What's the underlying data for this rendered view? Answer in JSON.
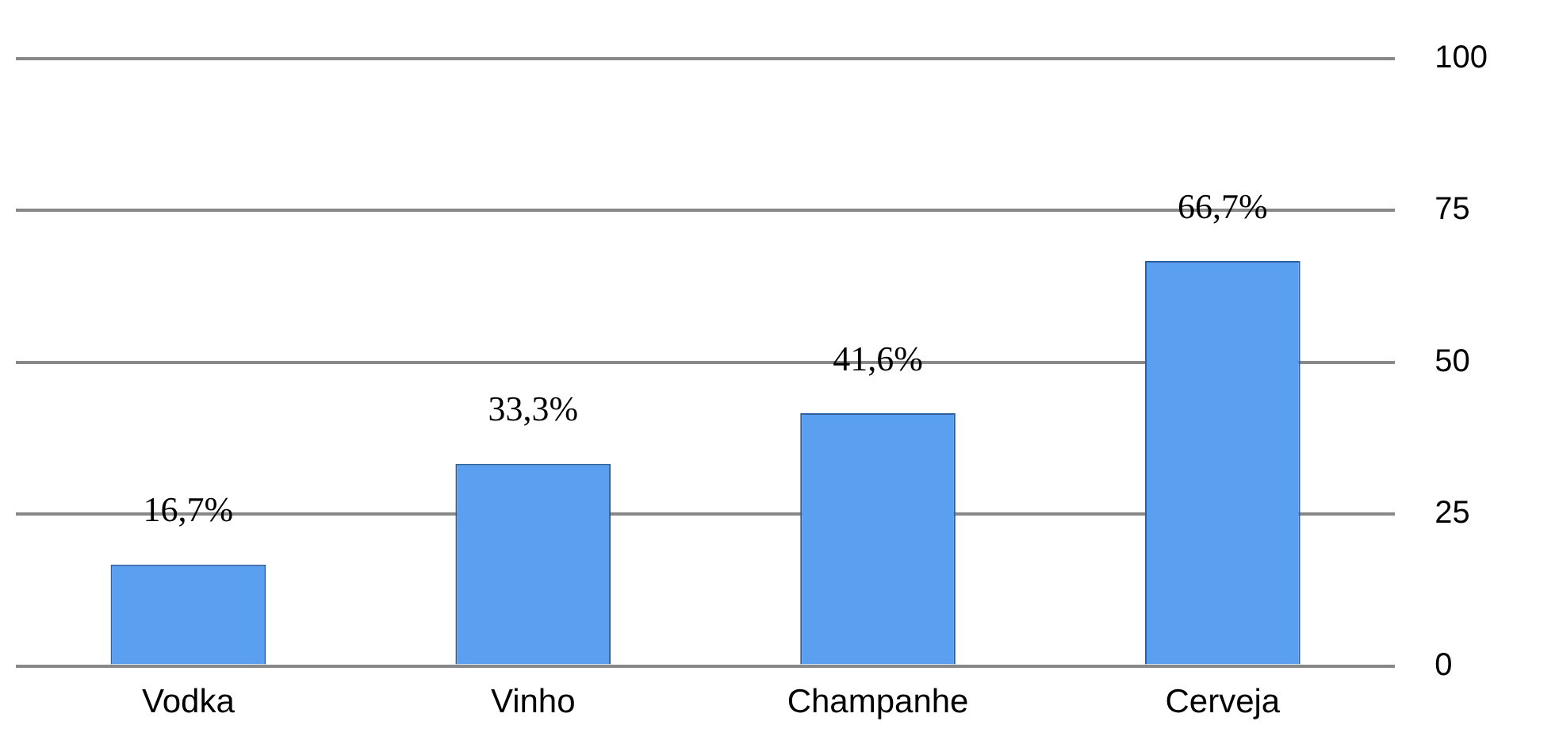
{
  "chart_data": {
    "type": "bar",
    "categories": [
      "Vodka",
      "Vinho",
      "Champanhe",
      "Cerveja"
    ],
    "values": [
      16.7,
      33.3,
      41.6,
      66.7
    ],
    "value_labels": [
      "16,7%",
      "33,3%",
      "41,6%",
      "66,7%"
    ],
    "color": "#5a9ff0",
    "ylim": [
      0,
      100
    ],
    "yticks": [
      0,
      25,
      50,
      75,
      100
    ],
    "grid": "y",
    "legend": false
  }
}
